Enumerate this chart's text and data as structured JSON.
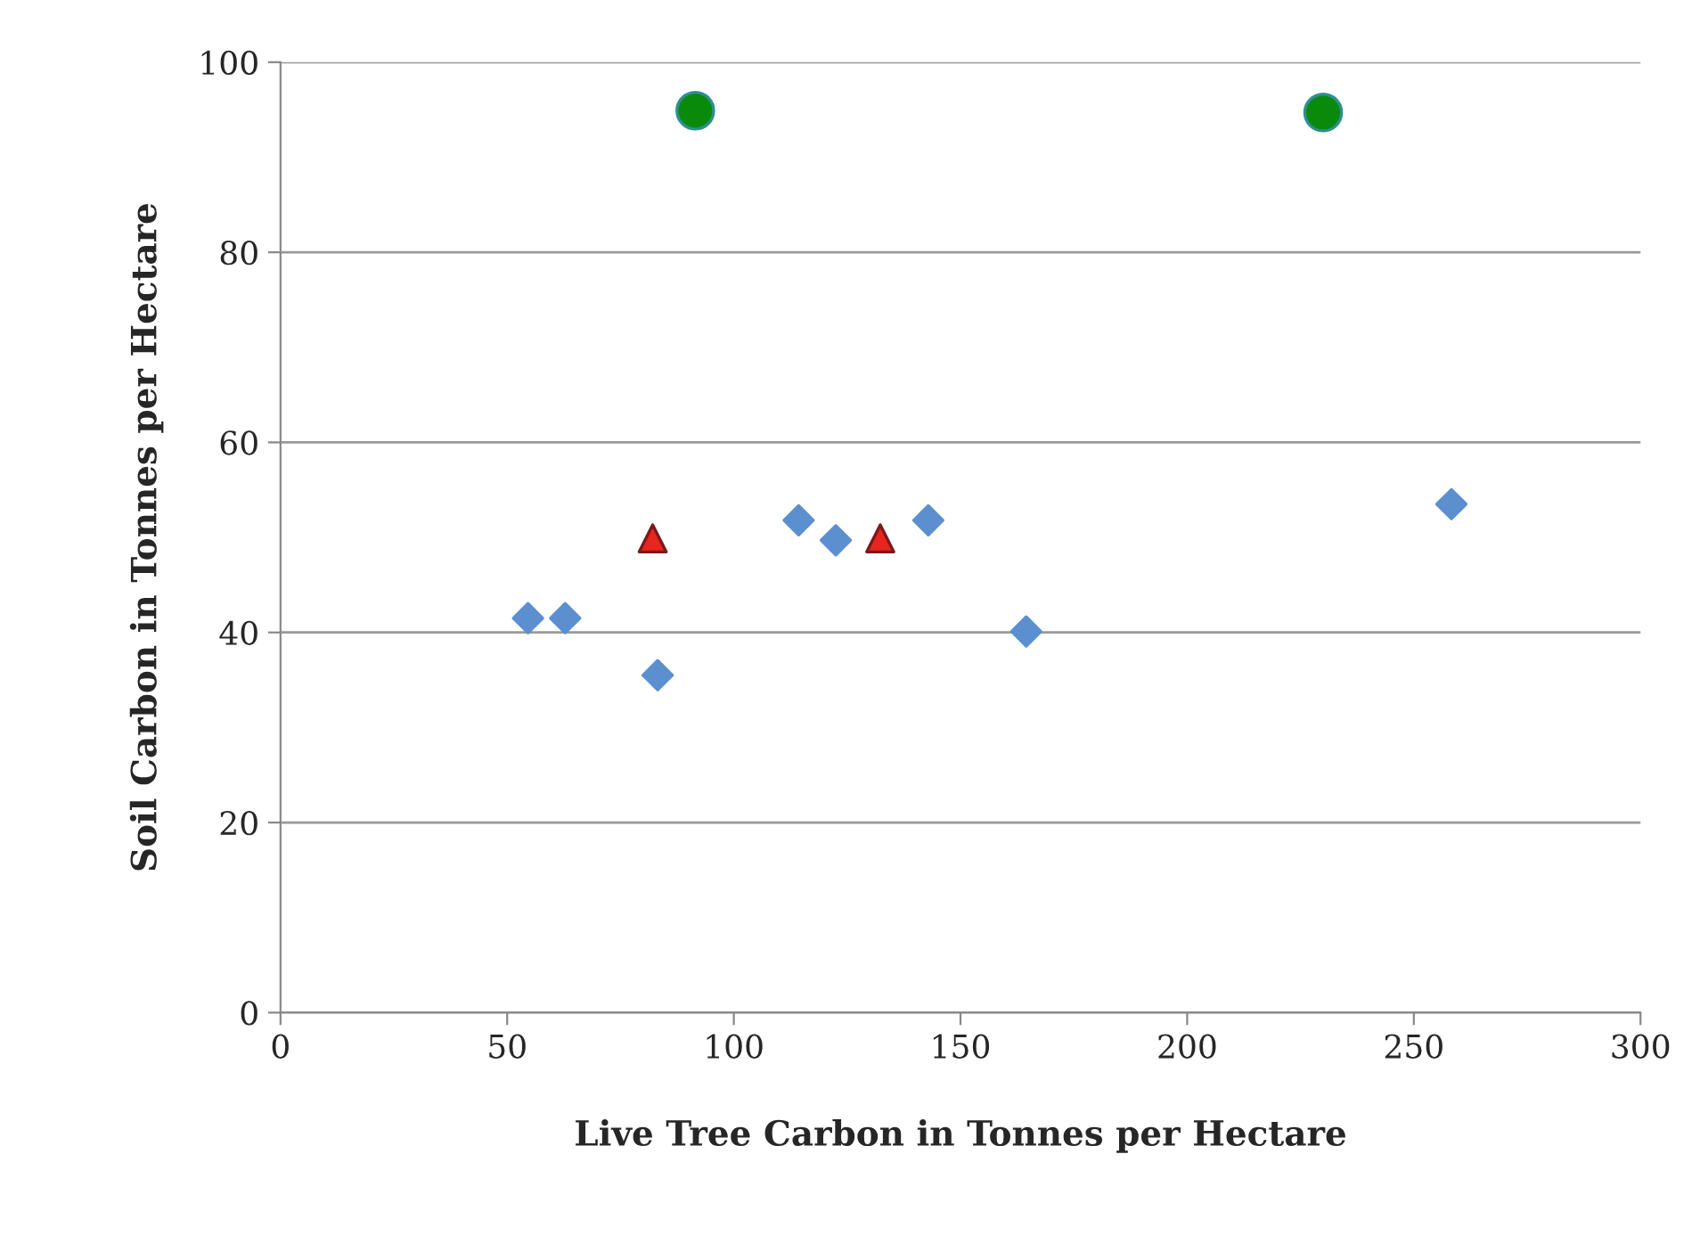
{
  "chart_data": {
    "type": "scatter",
    "xlabel": "Live Tree Carbon in Tonnes per Hectare",
    "ylabel": "Soil Carbon in Tonnes per Hectare",
    "xlim": [
      0,
      300
    ],
    "xticks": [
      0,
      50,
      100,
      150,
      200,
      250,
      300
    ],
    "ylim": [
      0,
      100
    ],
    "yticks": [
      0,
      20,
      40,
      60,
      80,
      100
    ],
    "grid": "y",
    "legend": false,
    "series": [
      {
        "color": "#5b8fd0",
        "marker": "diamond",
        "x": [
          54.6,
          62.8,
          83.2,
          114.3,
          122.5,
          142.9,
          164.5,
          258.3
        ],
        "values": [
          41.5,
          41.5,
          35.5,
          51.8,
          49.7,
          51.8,
          40.1,
          53.5
        ]
      },
      {
        "color": "#e8251e",
        "marker": "triangle",
        "x": [
          82.1,
          132.3
        ],
        "values": [
          49.9,
          49.9
        ]
      },
      {
        "color": "#0a8a0a",
        "marker": "circle",
        "x": [
          91.5,
          230.0
        ],
        "values": [
          94.9,
          94.7
        ]
      }
    ]
  }
}
